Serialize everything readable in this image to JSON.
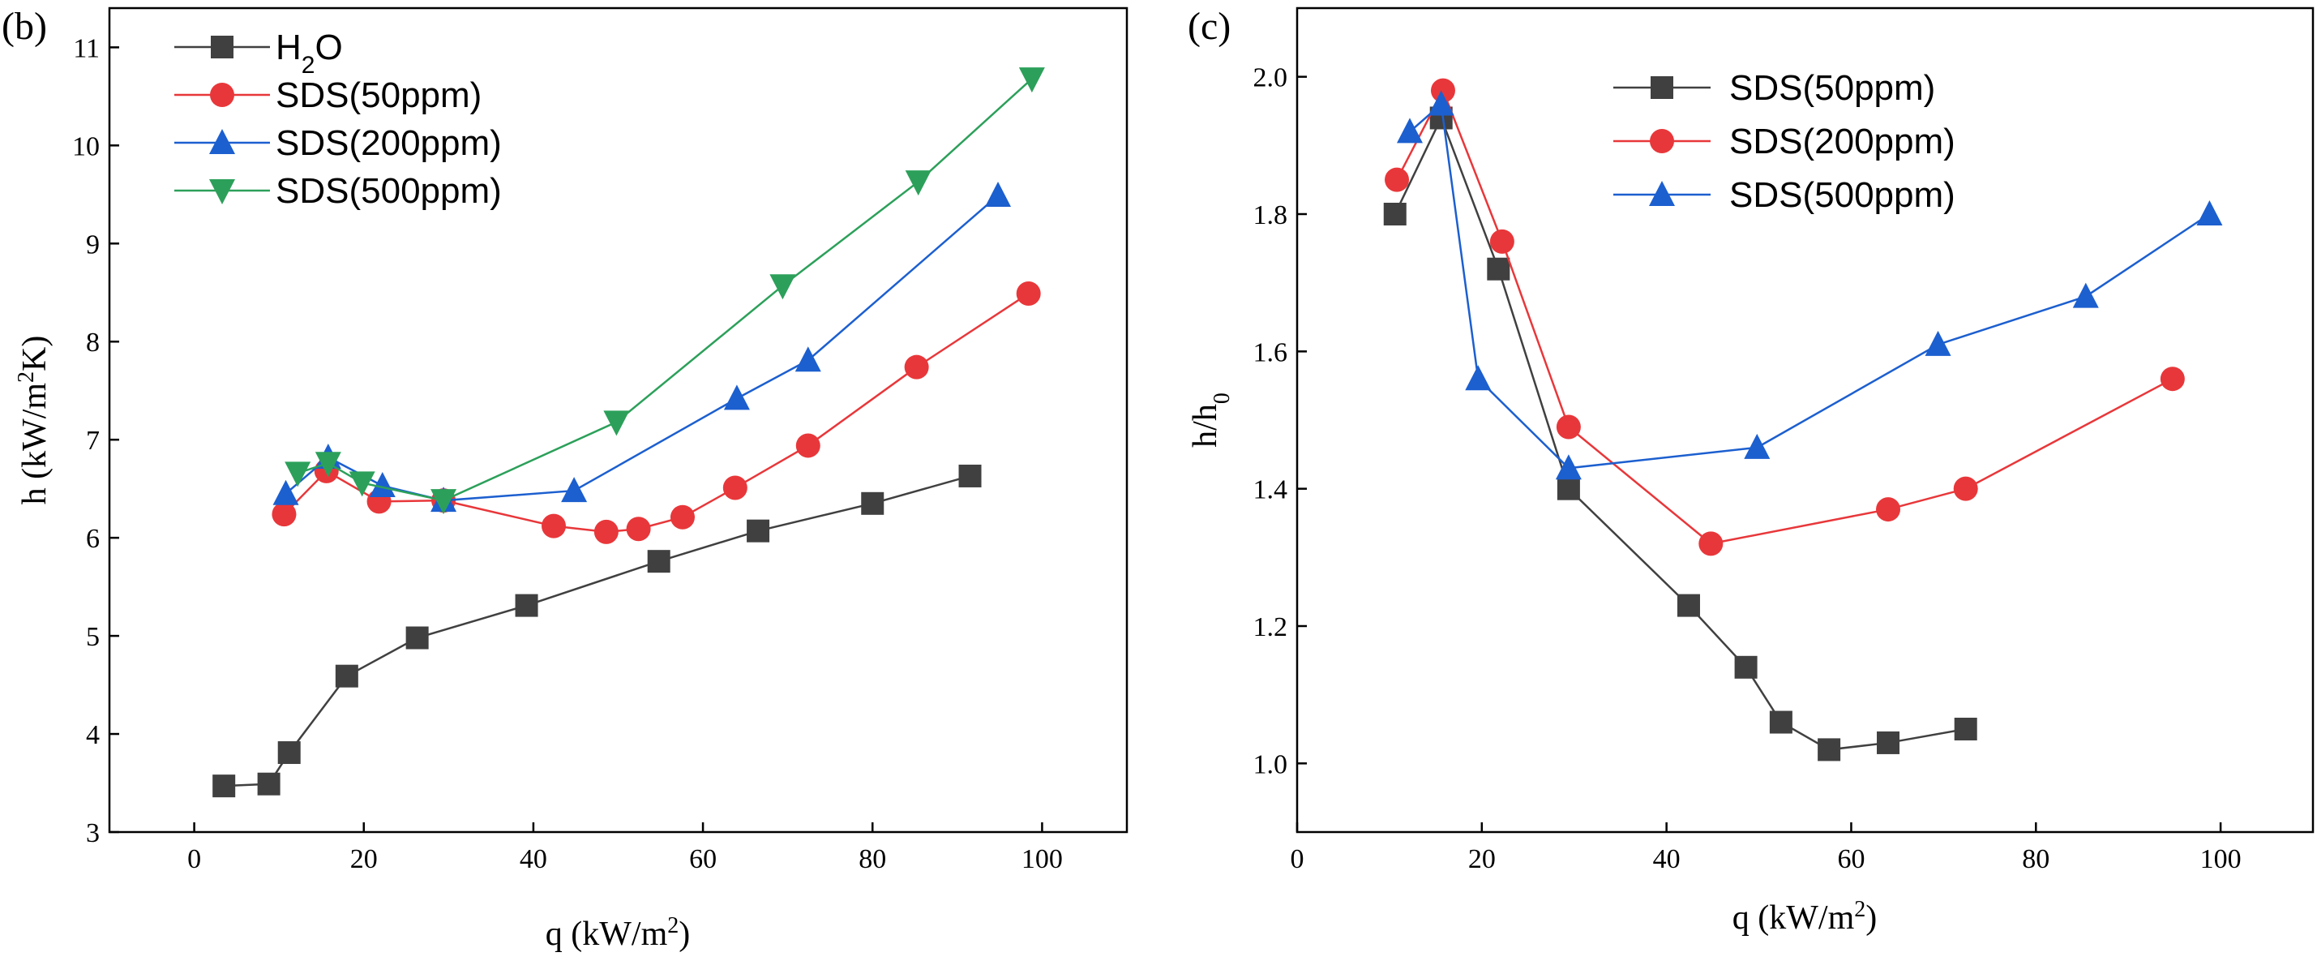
{
  "chart_data": [
    {
      "type": "line",
      "panel_label": "(b)",
      "xlabel": "q (kW/m",
      "xlabel_sup": "2",
      "xlabel_end": ")",
      "ylabel_pre": "h (kW/m",
      "ylabel_sup": "2",
      "ylabel_post": "K)",
      "xlim": [
        -10,
        110
      ],
      "ylim": [
        3,
        11.4
      ],
      "xticks": [
        0,
        20,
        40,
        60,
        80,
        100
      ],
      "yticks": [
        3,
        4,
        5,
        6,
        7,
        8,
        9,
        10,
        11
      ],
      "legend_position": "top-left",
      "series": [
        {
          "name": "H2O",
          "label_main": "H",
          "label_sub": "2",
          "label_end": "O",
          "color": "#404040",
          "marker": "square",
          "x": [
            3.5,
            8.8,
            11.2,
            18,
            26.3,
            39.2,
            54.8,
            66.5,
            80,
            91.5
          ],
          "y": [
            3.47,
            3.49,
            3.81,
            4.59,
            4.98,
            5.31,
            5.76,
            6.07,
            6.35,
            6.63
          ]
        },
        {
          "name": "SDS(50ppm)",
          "color": "#e8373a",
          "marker": "circle",
          "x": [
            10.6,
            15.6,
            21.8,
            29.4,
            42.4,
            48.6,
            52.4,
            57.6,
            63.8,
            72.4,
            85.2,
            98.4
          ],
          "y": [
            6.24,
            6.68,
            6.37,
            6.38,
            6.12,
            6.06,
            6.09,
            6.21,
            6.51,
            6.94,
            7.74,
            8.49
          ]
        },
        {
          "name": "SDS(200ppm)",
          "color": "#1c5fcf",
          "marker": "triangle-up",
          "x": [
            10.8,
            15.8,
            22.2,
            29.4,
            44.8,
            64,
            72.4,
            94.8
          ],
          "y": [
            6.45,
            6.82,
            6.53,
            6.38,
            6.48,
            7.42,
            7.81,
            9.49
          ]
        },
        {
          "name": "SDS(500ppm)",
          "color": "#2ca05a",
          "marker": "triangle-down",
          "x": [
            12.2,
            15.8,
            19.8,
            29.4,
            49.8,
            69.4,
            85.4,
            98.8
          ],
          "y": [
            6.66,
            6.76,
            6.56,
            6.38,
            7.18,
            8.57,
            9.63,
            10.68
          ]
        }
      ]
    },
    {
      "type": "line",
      "panel_label": "(c)",
      "xlabel": "q (kW/m",
      "xlabel_sup": "2",
      "xlabel_end": ")",
      "ylabel_pre": "h/h",
      "ylabel_sub": "0",
      "xlim": [
        0,
        110
      ],
      "ylim": [
        0.9,
        2.1
      ],
      "xticks": [
        0,
        20,
        40,
        60,
        80,
        100
      ],
      "yticks": [
        1.0,
        1.2,
        1.4,
        1.6,
        1.8,
        2.0
      ],
      "legend_position": "top-center",
      "series": [
        {
          "name": "SDS(50ppm)",
          "color": "#404040",
          "marker": "square",
          "x": [
            10.6,
            15.6,
            21.8,
            29.4,
            42.4,
            48.6,
            52.4,
            57.6,
            64,
            72.4
          ],
          "y": [
            1.8,
            1.94,
            1.72,
            1.4,
            1.23,
            1.14,
            1.06,
            1.02,
            1.03,
            1.05
          ]
        },
        {
          "name": "SDS(200ppm)",
          "color": "#e8373a",
          "marker": "circle",
          "x": [
            10.8,
            15.8,
            22.2,
            29.4,
            44.8,
            64,
            72.4,
            94.8
          ],
          "y": [
            1.85,
            1.98,
            1.76,
            1.49,
            1.32,
            1.37,
            1.4,
            1.56
          ]
        },
        {
          "name": "SDS(500ppm)",
          "color": "#1c5fcf",
          "marker": "triangle-up",
          "x": [
            12.2,
            15.6,
            19.6,
            29.4,
            49.8,
            69.4,
            85.4,
            98.8
          ],
          "y": [
            1.92,
            1.96,
            1.56,
            1.43,
            1.46,
            1.61,
            1.68,
            1.8
          ]
        }
      ]
    }
  ]
}
